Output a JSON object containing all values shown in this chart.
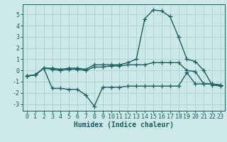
{
  "bg_color": "#cde8e8",
  "grid_color": "#b0d0d0",
  "line_color": "#1a6060",
  "marker": "+",
  "markersize": 4,
  "linewidth": 1.0,
  "xlabel": "Humidex (Indice chaleur)",
  "xlabel_fontsize": 7,
  "tick_fontsize": 6,
  "xlim": [
    -0.5,
    23.5
  ],
  "ylim": [
    -3.6,
    5.9
  ],
  "yticks": [
    -3,
    -2,
    -1,
    0,
    1,
    2,
    3,
    4,
    5
  ],
  "xticks": [
    0,
    1,
    2,
    3,
    4,
    5,
    6,
    7,
    8,
    9,
    10,
    11,
    12,
    13,
    14,
    15,
    16,
    17,
    18,
    19,
    20,
    21,
    22,
    23
  ],
  "line1_x": [
    0,
    1,
    2,
    3,
    4,
    5,
    6,
    7,
    8,
    9,
    10,
    11,
    12,
    13,
    14,
    15,
    16,
    17,
    18,
    19,
    20,
    21,
    22,
    23
  ],
  "line1_y": [
    -0.5,
    -0.4,
    0.2,
    0.2,
    0.1,
    0.2,
    0.2,
    0.1,
    0.5,
    0.5,
    0.5,
    0.5,
    0.7,
    1.0,
    4.6,
    5.4,
    5.3,
    4.8,
    3.0,
    1.0,
    0.8,
    0.0,
    -1.3,
    -1.4
  ],
  "line2_x": [
    0,
    1,
    2,
    3,
    4,
    5,
    6,
    7,
    8,
    9,
    10,
    11,
    12,
    13,
    14,
    15,
    16,
    17,
    18,
    19,
    20,
    21,
    22,
    23
  ],
  "line2_y": [
    -0.5,
    -0.4,
    0.2,
    0.1,
    0.0,
    0.1,
    0.1,
    0.0,
    0.3,
    0.3,
    0.4,
    0.4,
    0.5,
    0.5,
    0.5,
    0.7,
    0.7,
    0.7,
    0.7,
    0.0,
    -0.1,
    -1.2,
    -1.2,
    -1.3
  ],
  "line3_x": [
    0,
    1,
    2,
    3,
    4,
    5,
    6,
    7,
    8,
    9,
    10,
    11,
    12,
    13,
    14,
    15,
    16,
    17,
    18,
    19,
    20,
    21,
    22,
    23
  ],
  "line3_y": [
    -0.5,
    -0.4,
    0.2,
    -1.6,
    -1.6,
    -1.7,
    -1.7,
    -2.2,
    -3.2,
    -1.5,
    -1.5,
    -1.5,
    -1.4,
    -1.4,
    -1.4,
    -1.4,
    -1.4,
    -1.4,
    -1.4,
    -0.2,
    -1.2,
    -1.2,
    -1.2,
    -1.3
  ]
}
